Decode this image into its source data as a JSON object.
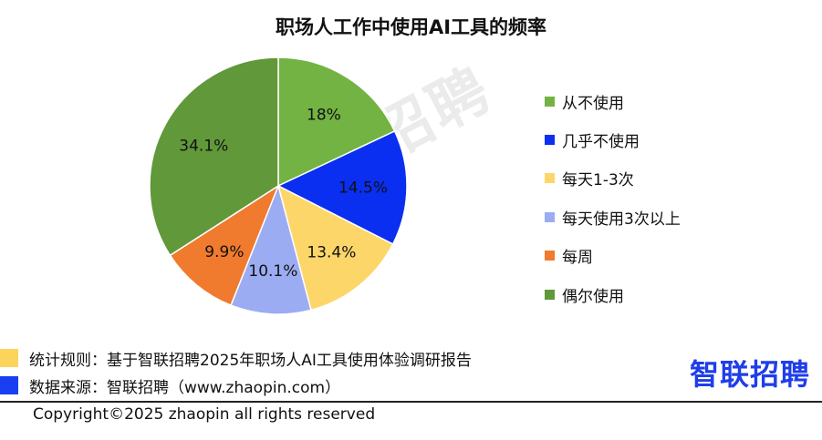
{
  "chart_data": {
    "type": "pie",
    "title": "职场人工作中使用AI工具的频率",
    "categories": [
      "从不使用",
      "几乎不使用",
      "每天1-3次",
      "每天使用3次以上",
      "每周",
      "偶尔使用"
    ],
    "values": [
      18,
      14.5,
      13.4,
      10.1,
      9.9,
      34.1
    ],
    "value_labels": [
      "18%",
      "14.5%",
      "13.4%",
      "10.1%",
      "9.9%",
      "34.1%"
    ],
    "colors": [
      "#72b343",
      "#0a2ff0",
      "#fdd66a",
      "#9bacf2",
      "#f07a2e",
      "#60983a"
    ],
    "legend_position": "right"
  },
  "watermark": "智联招聘",
  "notes": [
    {
      "text": "统计规则：基于智联招聘2025年职场人AI工具使用体验调研报告",
      "color": "#fcd45c"
    },
    {
      "text": "数据来源：智联招聘（www.zhaopin.com）",
      "color": "#1a3ff2"
    }
  ],
  "logo": "智联招聘",
  "copyright": "Copyright©2025 zhaopin all rights reserved"
}
